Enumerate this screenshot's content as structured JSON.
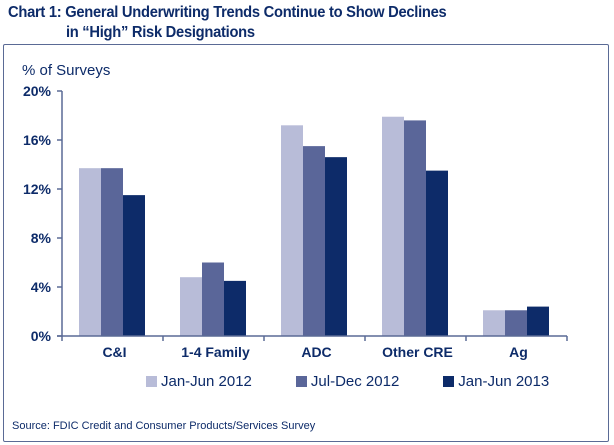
{
  "chart_data": {
    "type": "bar",
    "title": "Chart 1: General Underwriting Trends Continue to Show Declines in “High” Risk Designations",
    "title_lines": [
      "Chart 1: General Underwriting Trends Continue to Show Declines",
      "in “High” Risk Designations"
    ],
    "xlabel": "",
    "ylabel": "% of Surveys",
    "ylim": [
      0,
      20
    ],
    "yticks": [
      0,
      4,
      8,
      12,
      16,
      20
    ],
    "ytick_labels": [
      "0%",
      "4%",
      "8%",
      "12%",
      "16%",
      "20%"
    ],
    "categories": [
      "C&I",
      "1-4 Family",
      "ADC",
      "Other CRE",
      "Ag"
    ],
    "series": [
      {
        "name": "Jan-Jun 2012",
        "color": "#b8bcd8",
        "values": [
          13.7,
          4.8,
          17.2,
          17.9,
          2.1
        ]
      },
      {
        "name": "Jul-Dec 2012",
        "color": "#5a6699",
        "values": [
          13.7,
          6.0,
          15.5,
          17.6,
          2.1
        ]
      },
      {
        "name": "Jan-Jun 2013",
        "color": "#0d2b69",
        "values": [
          11.5,
          4.5,
          14.6,
          13.5,
          2.4
        ]
      }
    ],
    "grid": false,
    "legend_position": "bottom",
    "source": "Source:  FDIC Credit and Consumer Products/Services Survey"
  }
}
